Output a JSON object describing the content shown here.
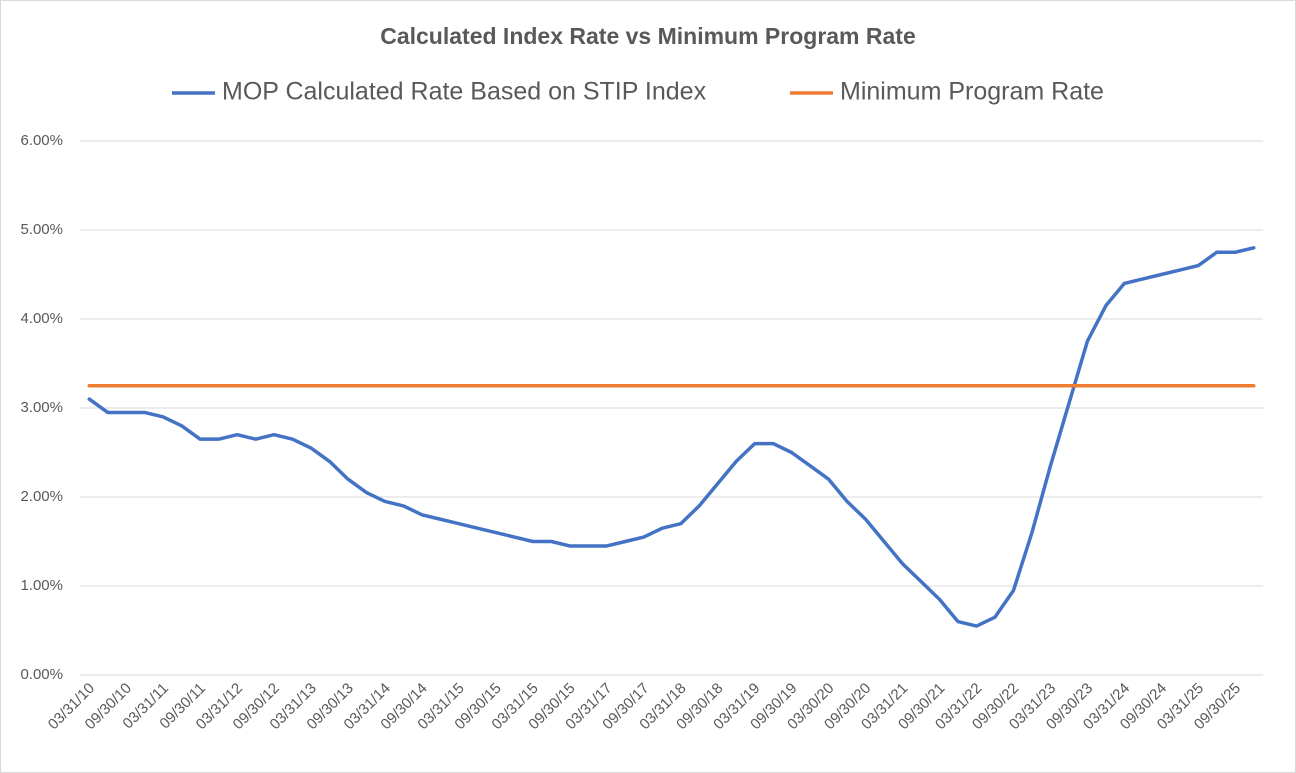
{
  "chart_data": {
    "type": "line",
    "title": "Calculated Index Rate vs Minimum Program Rate",
    "categories": [
      "03/31/10",
      null,
      "09/30/10",
      null,
      "03/31/11",
      null,
      "09/30/11",
      null,
      "03/31/12",
      null,
      "09/30/12",
      null,
      "03/31/13",
      null,
      "09/30/13",
      null,
      "03/31/14",
      null,
      "09/30/14",
      null,
      "03/31/15",
      null,
      "09/30/15",
      null,
      "03/31/15",
      null,
      "09/30/15",
      null,
      "03/31/17",
      null,
      "09/30/17",
      null,
      "03/31/18",
      null,
      "09/30/18",
      null,
      "03/31/19",
      null,
      "09/30/19",
      null,
      "03/30/20",
      null,
      "09/30/20",
      null,
      "03/31/21",
      null,
      "09/30/21",
      null,
      "03/31/22",
      null,
      "09/30/22",
      null,
      "03/31/23",
      null,
      "09/30/23",
      null,
      "03/31/24",
      null,
      "09/30/24",
      null,
      "03/31/25",
      null,
      "09/30/25",
      null
    ],
    "series": [
      {
        "name": "MOP Calculated Rate Based on STIP Index",
        "color": "#4472c4",
        "values": [
          3.1,
          2.95,
          2.95,
          2.95,
          2.9,
          2.8,
          2.65,
          2.65,
          2.7,
          2.65,
          2.7,
          2.65,
          2.55,
          2.4,
          2.2,
          2.05,
          1.95,
          1.9,
          1.8,
          1.75,
          1.7,
          1.65,
          1.6,
          1.55,
          1.5,
          1.5,
          1.45,
          1.45,
          1.45,
          1.5,
          1.55,
          1.65,
          1.7,
          1.9,
          2.15,
          2.4,
          2.6,
          2.6,
          2.5,
          2.35,
          2.2,
          1.95,
          1.75,
          1.5,
          1.25,
          1.05,
          0.85,
          0.6,
          0.55,
          0.65,
          0.95,
          1.6,
          2.35,
          3.05,
          3.75,
          4.15,
          4.4,
          4.45,
          4.5,
          4.55,
          4.6,
          4.75,
          4.75,
          4.8
        ]
      },
      {
        "name": "Minimum Program Rate",
        "color": "#ed7d31",
        "values": [
          3.25,
          3.25,
          3.25,
          3.25,
          3.25,
          3.25,
          3.25,
          3.25,
          3.25,
          3.25,
          3.25,
          3.25,
          3.25,
          3.25,
          3.25,
          3.25,
          3.25,
          3.25,
          3.25,
          3.25,
          3.25,
          3.25,
          3.25,
          3.25,
          3.25,
          3.25,
          3.25,
          3.25,
          3.25,
          3.25,
          3.25,
          3.25,
          3.25,
          3.25,
          3.25,
          3.25,
          3.25,
          3.25,
          3.25,
          3.25,
          3.25,
          3.25,
          3.25,
          3.25,
          3.25,
          3.25,
          3.25,
          3.25,
          3.25,
          3.25,
          3.25,
          3.25,
          3.25,
          3.25,
          3.25,
          3.25,
          3.25,
          3.25,
          3.25,
          3.25,
          3.25,
          3.25,
          3.25,
          3.25
        ]
      }
    ],
    "ylim": [
      0,
      6
    ],
    "yticks": [
      {
        "value": 0,
        "label": "0.00%"
      },
      {
        "value": 1,
        "label": "1.00%"
      },
      {
        "value": 2,
        "label": "2.00%"
      },
      {
        "value": 3,
        "label": "3.00%"
      },
      {
        "value": 4,
        "label": "4.00%"
      },
      {
        "value": 5,
        "label": "5.00%"
      },
      {
        "value": 6,
        "label": "6.00%"
      }
    ],
    "grid": true
  }
}
